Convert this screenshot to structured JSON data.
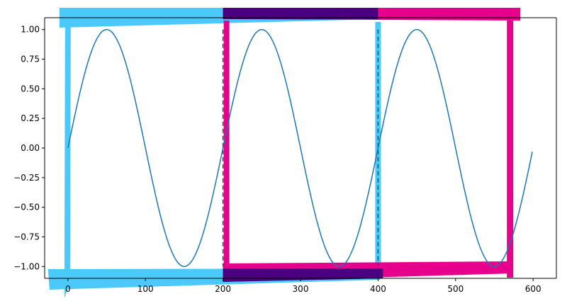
{
  "chart_data": {
    "type": "line",
    "title": "",
    "xlabel": "",
    "ylabel": "",
    "xlim": [
      -30,
      630
    ],
    "ylim": [
      -1.1,
      1.1
    ],
    "x_ticks": [
      0,
      100,
      200,
      300,
      400,
      500,
      600
    ],
    "x_tick_labels": [
      "0",
      "100",
      "200",
      "300",
      "400",
      "500",
      "600"
    ],
    "y_ticks": [
      1.0,
      0.75,
      0.5,
      0.25,
      0.0,
      -0.25,
      -0.5,
      -0.75,
      -1.0
    ],
    "y_tick_labels": [
      "1.00",
      "0.75",
      "0.50",
      "0.25",
      "0.00",
      "−0.25",
      "−0.50",
      "−0.75",
      "−1.00"
    ],
    "grid": false,
    "series": [
      {
        "kind": "sine",
        "x_start": 0,
        "x_end": 599,
        "period": 200,
        "amplitude": 1.0,
        "color": "#1f77b4"
      }
    ],
    "vertical_lines": [
      {
        "x": 200,
        "y_range": [
          -1,
          1
        ],
        "style": "dashed",
        "color": "#444444"
      },
      {
        "x": 400,
        "y_range": [
          -1,
          1
        ],
        "style": "dashed",
        "color": "#444444"
      }
    ],
    "frames": [
      {
        "x_range": [
          0,
          400
        ],
        "y_range": [
          -1.1,
          1.1
        ],
        "color": "#4ac9fb",
        "style": "hand-drawn thick outline"
      },
      {
        "x_range": [
          200,
          600
        ],
        "y_range": [
          -1.1,
          1.1
        ],
        "color": "#e6008c",
        "style": "hand-drawn thick outline"
      }
    ],
    "overlap_color": "#4b0082"
  }
}
